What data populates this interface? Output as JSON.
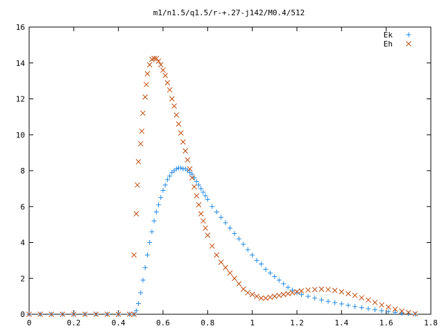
{
  "chart_data": {
    "type": "scatter",
    "title": "m1/n1.5/q1.5/r-+.27-j142/M0.4/512",
    "xlabel": "",
    "ylabel": "",
    "xlim": [
      0,
      1.8
    ],
    "ylim": [
      0,
      16
    ],
    "x_ticks": [
      0,
      0.2,
      0.4,
      0.6,
      0.8,
      1,
      1.2,
      1.4,
      1.6,
      1.8
    ],
    "x_tick_labels": [
      "0",
      "0.2",
      "0.4",
      "0.6",
      "0.8",
      "1",
      "1.2",
      "1.4",
      "1.6",
      "1.8"
    ],
    "y_ticks": [
      0,
      2,
      4,
      6,
      8,
      10,
      12,
      14,
      16
    ],
    "y_tick_labels": [
      "0",
      "2",
      "4",
      "6",
      "8",
      "10",
      "12",
      "14",
      "16"
    ],
    "grid": false,
    "legend_position": "top-right",
    "series": [
      {
        "name": "Ek",
        "marker": "plus",
        "color": "#1e88e5",
        "points": [
          [
            0.0,
            0.0
          ],
          [
            0.05,
            0.0
          ],
          [
            0.1,
            0.0
          ],
          [
            0.15,
            0.0
          ],
          [
            0.2,
            0.0
          ],
          [
            0.25,
            0.0
          ],
          [
            0.3,
            0.0
          ],
          [
            0.35,
            0.0
          ],
          [
            0.4,
            0.0
          ],
          [
            0.45,
            0.0
          ],
          [
            0.47,
            0.0
          ],
          [
            0.48,
            0.2
          ],
          [
            0.49,
            0.6
          ],
          [
            0.5,
            1.2
          ],
          [
            0.51,
            1.9
          ],
          [
            0.52,
            2.6
          ],
          [
            0.53,
            3.3
          ],
          [
            0.54,
            4.0
          ],
          [
            0.55,
            4.6
          ],
          [
            0.56,
            5.2
          ],
          [
            0.57,
            5.7
          ],
          [
            0.58,
            6.1
          ],
          [
            0.59,
            6.5
          ],
          [
            0.6,
            6.9
          ],
          [
            0.61,
            7.2
          ],
          [
            0.62,
            7.5
          ],
          [
            0.63,
            7.7
          ],
          [
            0.64,
            7.9
          ],
          [
            0.65,
            8.0
          ],
          [
            0.66,
            8.1
          ],
          [
            0.67,
            8.15
          ],
          [
            0.68,
            8.15
          ],
          [
            0.69,
            8.1
          ],
          [
            0.7,
            8.1
          ],
          [
            0.71,
            8.0
          ],
          [
            0.72,
            7.9
          ],
          [
            0.73,
            7.8
          ],
          [
            0.74,
            7.6
          ],
          [
            0.75,
            7.4
          ],
          [
            0.76,
            7.2
          ],
          [
            0.77,
            7.0
          ],
          [
            0.78,
            6.8
          ],
          [
            0.79,
            6.6
          ],
          [
            0.8,
            6.4
          ],
          [
            0.82,
            6.0
          ],
          [
            0.84,
            5.7
          ],
          [
            0.86,
            5.4
          ],
          [
            0.88,
            5.1
          ],
          [
            0.9,
            4.8
          ],
          [
            0.92,
            4.5
          ],
          [
            0.94,
            4.2
          ],
          [
            0.96,
            3.9
          ],
          [
            0.98,
            3.6
          ],
          [
            1.0,
            3.3
          ],
          [
            1.02,
            3.0
          ],
          [
            1.04,
            2.8
          ],
          [
            1.06,
            2.5
          ],
          [
            1.08,
            2.3
          ],
          [
            1.1,
            2.1
          ],
          [
            1.12,
            1.9
          ],
          [
            1.14,
            1.7
          ],
          [
            1.16,
            1.5
          ],
          [
            1.18,
            1.35
          ],
          [
            1.2,
            1.2
          ],
          [
            1.22,
            1.1
          ],
          [
            1.25,
            1.0
          ],
          [
            1.28,
            0.9
          ],
          [
            1.31,
            0.8
          ],
          [
            1.34,
            0.72
          ],
          [
            1.37,
            0.65
          ],
          [
            1.4,
            0.58
          ],
          [
            1.43,
            0.5
          ],
          [
            1.46,
            0.43
          ],
          [
            1.49,
            0.37
          ],
          [
            1.52,
            0.31
          ],
          [
            1.55,
            0.25
          ],
          [
            1.58,
            0.2
          ],
          [
            1.61,
            0.15
          ],
          [
            1.64,
            0.1
          ],
          [
            1.67,
            0.06
          ],
          [
            1.7,
            0.03
          ],
          [
            1.73,
            0.0
          ]
        ]
      },
      {
        "name": "Eh",
        "marker": "cross",
        "color": "#bf4a0b",
        "points": [
          [
            0.0,
            0.0
          ],
          [
            0.05,
            0.0
          ],
          [
            0.1,
            0.0
          ],
          [
            0.15,
            0.0
          ],
          [
            0.2,
            0.0
          ],
          [
            0.25,
            0.0
          ],
          [
            0.3,
            0.0
          ],
          [
            0.35,
            0.0
          ],
          [
            0.4,
            0.0
          ],
          [
            0.45,
            0.0
          ],
          [
            0.47,
            0.0
          ],
          [
            0.47,
            3.3
          ],
          [
            0.48,
            5.6
          ],
          [
            0.485,
            7.2
          ],
          [
            0.49,
            8.5
          ],
          [
            0.5,
            9.5
          ],
          [
            0.505,
            10.2
          ],
          [
            0.51,
            11.2
          ],
          [
            0.52,
            12.1
          ],
          [
            0.525,
            12.8
          ],
          [
            0.53,
            13.4
          ],
          [
            0.54,
            13.9
          ],
          [
            0.55,
            14.2
          ],
          [
            0.56,
            14.25
          ],
          [
            0.57,
            14.25
          ],
          [
            0.58,
            14.1
          ],
          [
            0.59,
            13.9
          ],
          [
            0.6,
            13.6
          ],
          [
            0.61,
            13.3
          ],
          [
            0.62,
            12.9
          ],
          [
            0.63,
            12.5
          ],
          [
            0.64,
            12.0
          ],
          [
            0.65,
            11.6
          ],
          [
            0.66,
            11.1
          ],
          [
            0.67,
            10.6
          ],
          [
            0.68,
            10.1
          ],
          [
            0.69,
            9.6
          ],
          [
            0.7,
            9.1
          ],
          [
            0.71,
            8.6
          ],
          [
            0.72,
            8.1
          ],
          [
            0.73,
            7.6
          ],
          [
            0.74,
            7.1
          ],
          [
            0.75,
            6.6
          ],
          [
            0.76,
            6.1
          ],
          [
            0.77,
            5.6
          ],
          [
            0.78,
            5.2
          ],
          [
            0.79,
            4.8
          ],
          [
            0.8,
            4.4
          ],
          [
            0.82,
            3.8
          ],
          [
            0.84,
            3.3
          ],
          [
            0.86,
            2.9
          ],
          [
            0.88,
            2.6
          ],
          [
            0.9,
            2.3
          ],
          [
            0.92,
            2.0
          ],
          [
            0.94,
            1.7
          ],
          [
            0.96,
            1.4
          ],
          [
            0.98,
            1.2
          ],
          [
            1.0,
            1.1
          ],
          [
            1.02,
            1.0
          ],
          [
            1.04,
            0.9
          ],
          [
            1.06,
            0.9
          ],
          [
            1.08,
            0.95
          ],
          [
            1.1,
            1.0
          ],
          [
            1.12,
            1.05
          ],
          [
            1.14,
            1.1
          ],
          [
            1.16,
            1.15
          ],
          [
            1.18,
            1.2
          ],
          [
            1.2,
            1.25
          ],
          [
            1.22,
            1.3
          ],
          [
            1.25,
            1.35
          ],
          [
            1.28,
            1.38
          ],
          [
            1.31,
            1.4
          ],
          [
            1.34,
            1.38
          ],
          [
            1.37,
            1.33
          ],
          [
            1.4,
            1.25
          ],
          [
            1.43,
            1.15
          ],
          [
            1.46,
            1.05
          ],
          [
            1.49,
            0.92
          ],
          [
            1.52,
            0.8
          ],
          [
            1.55,
            0.66
          ],
          [
            1.58,
            0.52
          ],
          [
            1.61,
            0.4
          ],
          [
            1.64,
            0.28
          ],
          [
            1.67,
            0.18
          ],
          [
            1.7,
            0.1
          ],
          [
            1.73,
            0.03
          ]
        ]
      }
    ]
  }
}
